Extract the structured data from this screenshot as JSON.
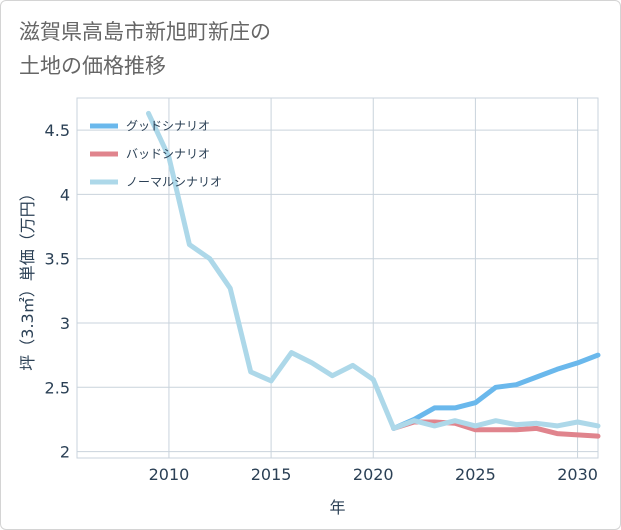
{
  "title": {
    "line1": "滋賀県高島市新旭町新庄の",
    "line2": "土地の価格推移"
  },
  "chart_data": {
    "type": "line",
    "xlabel": "年",
    "ylabel": "坪（3.3㎡）単価（万円）",
    "xlim": [
      2005.5,
      2031
    ],
    "ylim": [
      1.95,
      4.75
    ],
    "xticks": [
      2010,
      2015,
      2020,
      2025,
      2030
    ],
    "xtick_labels": [
      "2010",
      "2015",
      "2020",
      "2025",
      "2030"
    ],
    "yticks": [
      2,
      2.5,
      3,
      3.5,
      4,
      4.5
    ],
    "ytick_labels": [
      "2",
      "2.5",
      "3",
      "3.5",
      "4",
      "4.5"
    ],
    "grid": true,
    "legend_position": "top-left",
    "series": [
      {
        "name": "グッドシナリオ",
        "color": "#6ab8ec",
        "x": [
          2021,
          2022,
          2023,
          2024,
          2025,
          2026,
          2027,
          2028,
          2029,
          2030,
          2031
        ],
        "values": [
          2.18,
          2.25,
          2.34,
          2.34,
          2.38,
          2.5,
          2.52,
          2.58,
          2.64,
          2.69,
          2.75
        ]
      },
      {
        "name": "バッドシナリオ",
        "color": "#e0848d",
        "x": [
          2021,
          2022,
          2023,
          2024,
          2025,
          2026,
          2027,
          2028,
          2029,
          2030,
          2031
        ],
        "values": [
          2.18,
          2.23,
          2.23,
          2.22,
          2.17,
          2.17,
          2.17,
          2.18,
          2.14,
          2.13,
          2.12
        ]
      },
      {
        "name": "ノーマルシナリオ",
        "color": "#add8e9",
        "x": [
          2009,
          2010,
          2011,
          2012,
          2013,
          2014,
          2015,
          2016,
          2017,
          2018,
          2019,
          2020,
          2021,
          2022,
          2023,
          2024,
          2025,
          2026,
          2027,
          2028,
          2029,
          2030,
          2031
        ],
        "values": [
          4.63,
          4.29,
          3.61,
          3.5,
          3.27,
          2.62,
          2.55,
          2.77,
          2.69,
          2.59,
          2.67,
          2.56,
          2.18,
          2.24,
          2.2,
          2.24,
          2.2,
          2.24,
          2.21,
          2.22,
          2.2,
          2.23,
          2.2
        ]
      }
    ]
  }
}
